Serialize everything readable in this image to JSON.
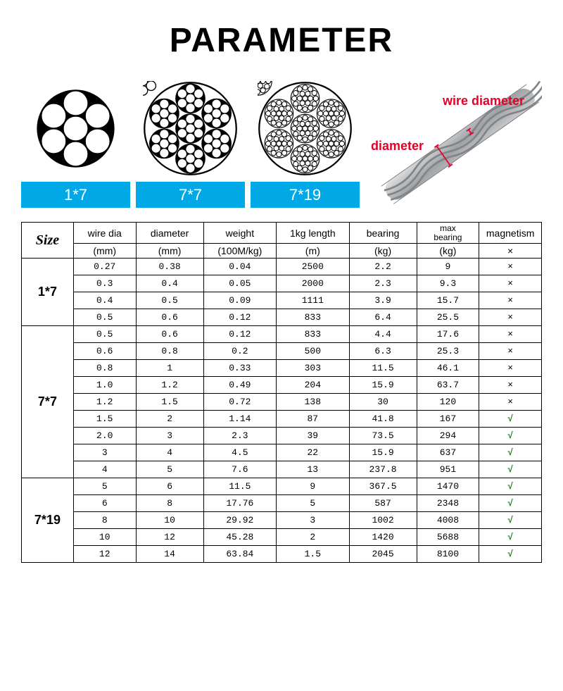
{
  "title": "PARAMETER",
  "cross_sections": [
    {
      "label": "1*7",
      "type": "1x7"
    },
    {
      "label": "7*7",
      "type": "7x7"
    },
    {
      "label": "7*19",
      "type": "7x19"
    }
  ],
  "cable_annot": {
    "wire_diameter": "wire diameter",
    "diameter": "diameter"
  },
  "table": {
    "size_header": "Size",
    "columns": [
      {
        "head": "wire dia",
        "unit": "(mm)"
      },
      {
        "head": "diameter",
        "unit": "(mm)"
      },
      {
        "head": "weight",
        "unit": "(100M/kg)"
      },
      {
        "head": "1kg length",
        "unit": "(m)"
      },
      {
        "head": "bearing",
        "unit": "(kg)"
      },
      {
        "head": "max bearing",
        "unit": "(kg)"
      },
      {
        "head": "magnetism",
        "unit": "×"
      }
    ],
    "groups": [
      {
        "name": "1*7",
        "rows": [
          {
            "wire_dia": "0.27",
            "diameter": "0.38",
            "weight": "0.04",
            "len": "2500",
            "bearing": "2.2",
            "max": "9",
            "mag": "×"
          },
          {
            "wire_dia": "0.3",
            "diameter": "0.4",
            "weight": "0.05",
            "len": "2000",
            "bearing": "2.3",
            "max": "9.3",
            "mag": "×"
          },
          {
            "wire_dia": "0.4",
            "diameter": "0.5",
            "weight": "0.09",
            "len": "1111",
            "bearing": "3.9",
            "max": "15.7",
            "mag": "×"
          },
          {
            "wire_dia": "0.5",
            "diameter": "0.6",
            "weight": "0.12",
            "len": "833",
            "bearing": "6.4",
            "max": "25.5",
            "mag": "×"
          }
        ]
      },
      {
        "name": "7*7",
        "rows": [
          {
            "wire_dia": "0.5",
            "diameter": "0.6",
            "weight": "0.12",
            "len": "833",
            "bearing": "4.4",
            "max": "17.6",
            "mag": "×"
          },
          {
            "wire_dia": "0.6",
            "diameter": "0.8",
            "weight": "0.2",
            "len": "500",
            "bearing": "6.3",
            "max": "25.3",
            "mag": "×"
          },
          {
            "wire_dia": "0.8",
            "diameter": "1",
            "weight": "0.33",
            "len": "303",
            "bearing": "11.5",
            "max": "46.1",
            "mag": "×"
          },
          {
            "wire_dia": "1.0",
            "diameter": "1.2",
            "weight": "0.49",
            "len": "204",
            "bearing": "15.9",
            "max": "63.7",
            "mag": "×"
          },
          {
            "wire_dia": "1.2",
            "diameter": "1.5",
            "weight": "0.72",
            "len": "138",
            "bearing": "30",
            "max": "120",
            "mag": "×"
          },
          {
            "wire_dia": "1.5",
            "diameter": "2",
            "weight": "1.14",
            "len": "87",
            "bearing": "41.8",
            "max": "167",
            "mag": "√"
          },
          {
            "wire_dia": "2.0",
            "diameter": "3",
            "weight": "2.3",
            "len": "39",
            "bearing": "73.5",
            "max": "294",
            "mag": "√"
          },
          {
            "wire_dia": "3",
            "diameter": "4",
            "weight": "4.5",
            "len": "22",
            "bearing": "15.9",
            "max": "637",
            "mag": "√"
          },
          {
            "wire_dia": "4",
            "diameter": "5",
            "weight": "7.6",
            "len": "13",
            "bearing": "237.8",
            "max": "951",
            "mag": "√"
          }
        ]
      },
      {
        "name": "7*19",
        "rows": [
          {
            "wire_dia": "5",
            "diameter": "6",
            "weight": "11.5",
            "len": "9",
            "bearing": "367.5",
            "max": "1470",
            "mag": "√"
          },
          {
            "wire_dia": "6",
            "diameter": "8",
            "weight": "17.76",
            "len": "5",
            "bearing": "587",
            "max": "2348",
            "mag": "√"
          },
          {
            "wire_dia": "8",
            "diameter": "10",
            "weight": "29.92",
            "len": "3",
            "bearing": "1002",
            "max": "4008",
            "mag": "√"
          },
          {
            "wire_dia": "10",
            "diameter": "12",
            "weight": "45.28",
            "len": "2",
            "bearing": "1420",
            "max": "5688",
            "mag": "√"
          },
          {
            "wire_dia": "12",
            "diameter": "14",
            "weight": "63.84",
            "len": "1.5",
            "bearing": "2045",
            "max": "8100",
            "mag": "√"
          }
        ]
      }
    ]
  },
  "colors": {
    "label_bg": "#00a8e6",
    "annot": "#e4002b",
    "check": "#1a7a1a",
    "border": "#000000"
  }
}
